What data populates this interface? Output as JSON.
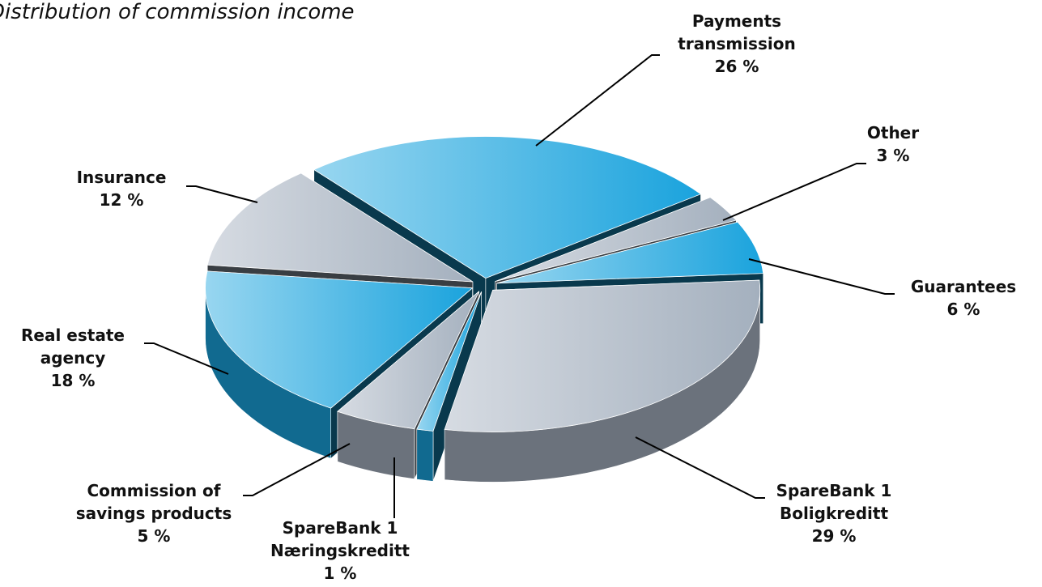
{
  "chart_data": {
    "type": "pie",
    "title": "Distribution of commission income",
    "categories": [
      "Payments transmission",
      "Other",
      "Guarantees",
      "SpareBank 1 Boligkreditt",
      "SpareBank 1 Næringskreditt",
      "Commission of savings products",
      "Real estate agency",
      "Insurance"
    ],
    "values": [
      26,
      3,
      6,
      29,
      1,
      5,
      18,
      12
    ],
    "value_labels": [
      "26 %",
      "3 %",
      "6 %",
      "29 %",
      "1 %",
      "5 %",
      "18 %",
      "12 %"
    ],
    "colors": [
      "#1aa3dd",
      "#a4b0be",
      "#1aa3dd",
      "#a4b0be",
      "#1aa3dd",
      "#a4b0be",
      "#1aa3dd",
      "#a4b0be"
    ]
  }
}
